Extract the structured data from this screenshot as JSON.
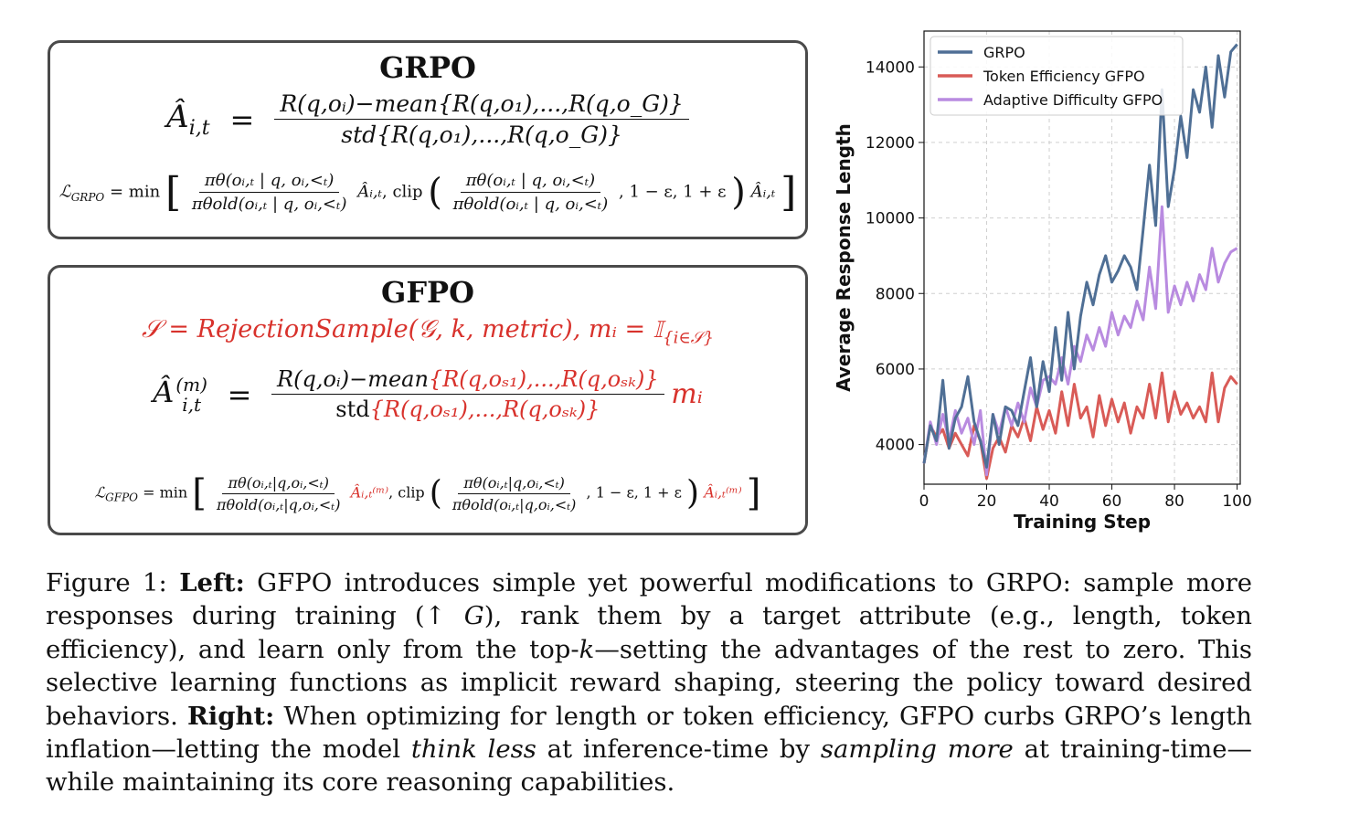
{
  "grpo_panel": {
    "title": "GRPO",
    "advantage_lhs": "Â",
    "advantage_sub": "i,t",
    "advantage_eq": "=",
    "advantage_num": "R(q,oᵢ)−mean{R(q,o₁),...,R(q,o_G)}",
    "advantage_den": "std{R(q,o₁),...,R(q,o_G)}",
    "loss": "𝓛GRPO = min[ πθ(o | q, o<t)/πθold(o | q, o<t) Â, clip( πθ(o | q, o<t)/πθold(o | q, o<t), 1 − ε, 1 + ε ) Â ]",
    "loss_lhs": "ℒ",
    "loss_lhs_sub": "GRPO",
    "loss_min": "= min",
    "ratio_num": "πθ(oᵢ,ₜ | q, oᵢ,<ₜ)",
    "ratio_den": "πθold(oᵢ,ₜ | q, oᵢ,<ₜ)",
    "adv_sym": "Âᵢ,ₜ",
    "clip_label": ", clip",
    "clip_bounds": ", 1 − ε, 1 + ε"
  },
  "gfpo_panel": {
    "title": "GFPO",
    "selection_eq": "𝒮 = RejectionSample(𝒢, k, metric),  mᵢ = 𝕀",
    "selection_sub": "{i∈𝒮}",
    "advantage_lhs": "Â",
    "advantage_sup": "(m)",
    "advantage_sub": "i,t",
    "advantage_eq": "=",
    "advantage_num_black": "R(q,oᵢ)−mean",
    "advantage_num_red": "{R(q,oₛ₁),...,R(q,oₛₖ)}",
    "advantage_den_black": "std",
    "advantage_den_red": "{R(q,oₛ₁),...,R(q,oₛₖ)}",
    "advantage_mult": "mᵢ",
    "loss_lhs": "ℒ",
    "loss_lhs_sub": "GFPO",
    "loss_min": "= min",
    "ratio_num": "πθ(oᵢ,ₜ|q,oᵢ,<ₜ)",
    "ratio_den": "πθold(oᵢ,ₜ|q,oᵢ,<ₜ)",
    "adv_sym": "Âᵢ,ₜ⁽ᵐ⁾",
    "clip_label": ", clip",
    "clip_bounds": ", 1 − ε, 1 + ε"
  },
  "caption": {
    "fig_label": "Figure 1: ",
    "left_label": "Left:",
    "part1": " GFPO introduces simple yet powerful modifications to GRPO: sample more responses during training (↑ ",
    "g_symbol": "G",
    "part2": "), rank them by a target attribute (e.g., length, token efficiency), and learn only from the top-",
    "k_symbol": "k",
    "part3": "—setting the advantages of the rest to zero. This selective learning functions as implicit reward shaping, steering the policy toward desired behaviors. ",
    "right_label": "Right:",
    "part4": " When optimizing for length or token efficiency, GFPO curbs GRPO’s length inflation—letting the model ",
    "think_less": "think less",
    "part5": " at inference-time by ",
    "sampling_more": "sampling more",
    "part6": " at training-time—while maintaining its core reasoning capabilities."
  },
  "chart_data": {
    "type": "line",
    "xlabel": "Training Step",
    "ylabel": "Average Response Length",
    "xlim": [
      0,
      101
    ],
    "ylim": [
      2950,
      14950
    ],
    "xticks": [
      0,
      20,
      40,
      60,
      80,
      100
    ],
    "yticks": [
      4000,
      6000,
      8000,
      10000,
      12000,
      14000
    ],
    "xtick_labels": [
      "0",
      "20",
      "40",
      "60",
      "80",
      "100"
    ],
    "ytick_labels": [
      "4000",
      "6000",
      "8000",
      "10000",
      "12000",
      "14000"
    ],
    "grid": true,
    "legend_position": "top-left",
    "series": [
      {
        "name": "GRPO",
        "color": "#4f6f95",
        "x": [
          0,
          2,
          4,
          6,
          8,
          10,
          12,
          14,
          16,
          18,
          20,
          22,
          24,
          26,
          28,
          30,
          32,
          34,
          36,
          38,
          40,
          42,
          44,
          46,
          48,
          50,
          52,
          54,
          56,
          58,
          60,
          62,
          64,
          66,
          68,
          70,
          72,
          74,
          76,
          78,
          80,
          82,
          84,
          86,
          88,
          90,
          92,
          94,
          96,
          98,
          100
        ],
        "values": [
          3500,
          4500,
          4100,
          5700,
          3900,
          4700,
          5000,
          5800,
          4600,
          4100,
          3400,
          4800,
          4000,
          5000,
          4900,
          4500,
          5400,
          6300,
          5000,
          6200,
          5400,
          7100,
          5700,
          7500,
          6000,
          7400,
          8300,
          7700,
          8500,
          9000,
          8300,
          8600,
          9000,
          8700,
          8100,
          9700,
          11400,
          9800,
          13400,
          10300,
          11300,
          12700,
          11600,
          13400,
          12800,
          14000,
          12400,
          14300,
          13200,
          14400,
          14600
        ]
      },
      {
        "name": "Token Efficiency GFPO",
        "color": "#d95b57",
        "x": [
          0,
          2,
          4,
          6,
          8,
          10,
          12,
          14,
          16,
          18,
          20,
          22,
          24,
          26,
          28,
          30,
          32,
          34,
          36,
          38,
          40,
          42,
          44,
          46,
          48,
          50,
          52,
          54,
          56,
          58,
          60,
          62,
          64,
          66,
          68,
          70,
          72,
          74,
          76,
          78,
          80,
          82,
          84,
          86,
          88,
          90,
          92,
          94,
          96,
          98,
          100
        ],
        "values": [
          3500,
          4500,
          4200,
          4400,
          3900,
          4300,
          4000,
          3700,
          4500,
          4100,
          3100,
          3900,
          4200,
          3800,
          4500,
          4200,
          4700,
          4100,
          5000,
          4400,
          4900,
          4300,
          5400,
          4500,
          5600,
          4700,
          5000,
          4200,
          5300,
          4500,
          5200,
          4600,
          5100,
          4300,
          5000,
          4700,
          5600,
          4700,
          5900,
          4600,
          5400,
          4800,
          5100,
          4700,
          5000,
          4600,
          5900,
          4600,
          5500,
          5800,
          5600
        ]
      },
      {
        "name": "Adaptive Difficulty GFPO",
        "color": "#b98be0",
        "x": [
          0,
          2,
          4,
          6,
          8,
          10,
          12,
          14,
          16,
          18,
          20,
          22,
          24,
          26,
          28,
          30,
          32,
          34,
          36,
          38,
          40,
          42,
          44,
          46,
          48,
          50,
          52,
          54,
          56,
          58,
          60,
          62,
          64,
          66,
          68,
          70,
          72,
          74,
          76,
          78,
          80,
          82,
          84,
          86,
          88,
          90,
          92,
          94,
          96,
          98,
          100
        ],
        "values": [
          3500,
          4600,
          4000,
          4800,
          4100,
          4900,
          4300,
          4700,
          4000,
          4900,
          3200,
          4800,
          4300,
          5000,
          4500,
          5100,
          4600,
          5500,
          5000,
          5700,
          5800,
          5600,
          6300,
          5600,
          6600,
          6200,
          6900,
          6500,
          7100,
          6600,
          7500,
          6900,
          7400,
          7100,
          7800,
          7300,
          8700,
          7600,
          10300,
          7500,
          8200,
          7700,
          8300,
          7800,
          8500,
          8100,
          9200,
          8300,
          8800,
          9100,
          9200
        ]
      }
    ]
  }
}
